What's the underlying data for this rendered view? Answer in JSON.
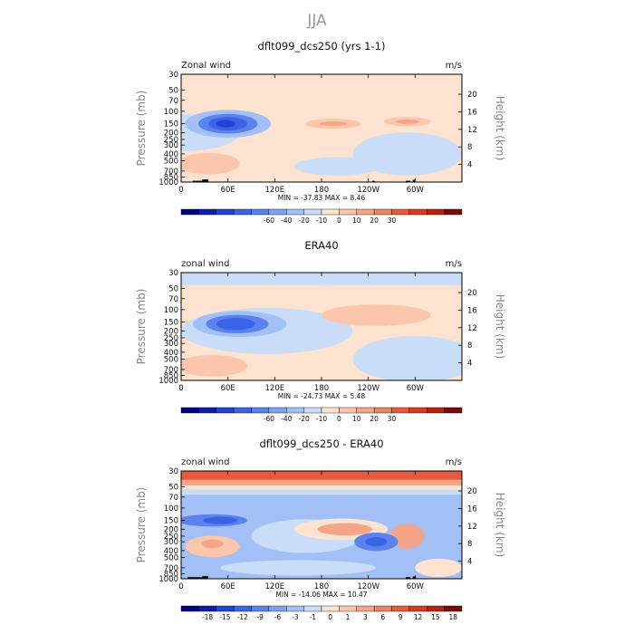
{
  "figure": {
    "title": "JJA"
  },
  "colors": {
    "dark_blue": "#02067a",
    "blue": "#1f43d8",
    "mid_blue": "#4c78e8",
    "light_blue": "#87aaf3",
    "pale_blue": "#c9dcf8",
    "cream": "#fde3d0",
    "salmon": "#f4a588",
    "orange_red": "#e85a3b",
    "dark_red": "#7a0a0a"
  },
  "chart_data": [
    {
      "type": "heatmap",
      "title": "dflt099_dcs250 (yrs 1-1)",
      "left_label": "Zonal wind",
      "right_label": "m/s",
      "ylabel": "Pressure (mb)",
      "y2label": "Height (km)",
      "x_ticks": [
        "0",
        "60E",
        "120E",
        "180",
        "120W",
        "60W"
      ],
      "x_tick_lon": [
        0,
        60,
        120,
        180,
        240,
        300
      ],
      "xlim": [
        0,
        360
      ],
      "y_ticks": [
        "30",
        "50",
        "70",
        "100",
        "150",
        "200",
        "250",
        "300",
        "400",
        "500",
        "700",
        "850",
        "1000"
      ],
      "y_tick_values": [
        30,
        50,
        70,
        100,
        150,
        200,
        250,
        300,
        400,
        500,
        700,
        850,
        1000
      ],
      "ylim": [
        1000,
        30
      ],
      "y_scale": "log",
      "height_ticks": [
        "4",
        "8",
        "12",
        "16",
        "20"
      ],
      "height_tick_km": [
        4,
        8,
        12,
        16,
        20
      ],
      "minmax": "MIN = -37.83   MAX =   8.46",
      "min": -37.83,
      "max": 8.46,
      "colorbar_labels": [
        "-60",
        "-40",
        "-20",
        "-10",
        "0",
        "10",
        "20",
        "30"
      ],
      "colorbar_colors": [
        "#02067a",
        "#0a1fb0",
        "#1f43d8",
        "#3a63e6",
        "#5a83ee",
        "#7da2f2",
        "#a2c0f5",
        "#c9dcf8",
        "#fde3d0",
        "#fbc6ac",
        "#f4a588",
        "#ee8466",
        "#e85a3b",
        "#d93a20",
        "#b82010",
        "#7a0a0a"
      ],
      "background": "#fde3d0",
      "regions": [
        {
          "fill": "#c9dcf8",
          "lon": 5,
          "p": 200,
          "dlon": 70,
          "dp": 0.6
        },
        {
          "fill": "#a2c0f5",
          "lon": 60,
          "p": 150,
          "dlon": 55,
          "dp": 0.45
        },
        {
          "fill": "#5a83ee",
          "lon": 60,
          "p": 150,
          "dlon": 38,
          "dp": 0.32
        },
        {
          "fill": "#3a63e6",
          "lon": 60,
          "p": 150,
          "dlon": 25,
          "dp": 0.22
        },
        {
          "fill": "#1f43d8",
          "lon": 57,
          "p": 150,
          "dlon": 12,
          "dp": 0.12
        },
        {
          "fill": "#c9dcf8",
          "lon": 290,
          "p": 400,
          "dlon": 70,
          "dp": 0.7
        },
        {
          "fill": "#c9dcf8",
          "lon": 200,
          "p": 600,
          "dlon": 55,
          "dp": 0.3
        },
        {
          "fill": "#fde3d0",
          "lon": 230,
          "p": 150,
          "dlon": 35,
          "dp": 0.22
        },
        {
          "fill": "#fbc6ac",
          "lon": 195,
          "p": 150,
          "dlon": 35,
          "dp": 0.17
        },
        {
          "fill": "#f4a588",
          "lon": 195,
          "p": 150,
          "dlon": 18,
          "dp": 0.07
        },
        {
          "fill": "#fbc6ac",
          "lon": 290,
          "p": 140,
          "dlon": 30,
          "dp": 0.15
        },
        {
          "fill": "#f4a588",
          "lon": 290,
          "p": 140,
          "dlon": 15,
          "dp": 0.07
        },
        {
          "fill": "#fbc6ac",
          "lon": 35,
          "p": 550,
          "dlon": 40,
          "dp": 0.35
        }
      ],
      "terrain": [
        {
          "lon": 15,
          "dlon": 12,
          "p_top": 960
        },
        {
          "lon": 27,
          "dlon": 8,
          "p_top": 920
        },
        {
          "lon": 245,
          "dlon": 3,
          "p_top": 960
        },
        {
          "lon": 288,
          "dlon": 6,
          "p_top": 960
        },
        {
          "lon": 297,
          "dlon": 3,
          "p_top": 930
        }
      ]
    },
    {
      "type": "heatmap",
      "title": "ERA40",
      "left_label": "zonal wind",
      "right_label": "m/s",
      "ylabel": "Pressure (mb)",
      "y2label": "Height (km)",
      "x_ticks": [
        "0",
        "60E",
        "120E",
        "180",
        "120W",
        "60W"
      ],
      "x_tick_lon": [
        0,
        60,
        120,
        180,
        240,
        300
      ],
      "xlim": [
        0,
        360
      ],
      "y_ticks": [
        "30",
        "50",
        "70",
        "100",
        "150",
        "200",
        "250",
        "300",
        "400",
        "500",
        "700",
        "850",
        "1000"
      ],
      "y_tick_values": [
        30,
        50,
        70,
        100,
        150,
        200,
        250,
        300,
        400,
        500,
        700,
        850,
        1000
      ],
      "ylim": [
        1000,
        30
      ],
      "y_scale": "log",
      "height_ticks": [
        "4",
        "8",
        "12",
        "16",
        "20"
      ],
      "height_tick_km": [
        4,
        8,
        12,
        16,
        20
      ],
      "minmax": "MIN = -24.73   MAX =   5.48",
      "min": -24.73,
      "max": 5.48,
      "colorbar_labels": [
        "-60",
        "-40",
        "-20",
        "-10",
        "0",
        "10",
        "20",
        "30"
      ],
      "colorbar_colors": [
        "#02067a",
        "#0a1fb0",
        "#1f43d8",
        "#3a63e6",
        "#5a83ee",
        "#7da2f2",
        "#a2c0f5",
        "#c9dcf8",
        "#fde3d0",
        "#fbc6ac",
        "#f4a588",
        "#ee8466",
        "#e85a3b",
        "#d93a20",
        "#b82010",
        "#7a0a0a"
      ],
      "background": "#fde3d0",
      "bands": [
        {
          "fill": "#c9dcf8",
          "p_top": 30,
          "p_bottom": 45
        }
      ],
      "regions": [
        {
          "fill": "#c9dcf8",
          "lon": 110,
          "p": 200,
          "dlon": 110,
          "dp": 0.75
        },
        {
          "fill": "#a2c0f5",
          "lon": 75,
          "p": 160,
          "dlon": 60,
          "dp": 0.42
        },
        {
          "fill": "#5a83ee",
          "lon": 72,
          "p": 160,
          "dlon": 40,
          "dp": 0.3
        },
        {
          "fill": "#3a63e6",
          "lon": 70,
          "p": 160,
          "dlon": 25,
          "dp": 0.2
        },
        {
          "fill": "#c9dcf8",
          "lon": 300,
          "p": 500,
          "dlon": 80,
          "dp": 0.75
        },
        {
          "fill": "#fbc6ac",
          "lon": 250,
          "p": 120,
          "dlon": 70,
          "dp": 0.35
        },
        {
          "fill": "#fbc6ac",
          "lon": 40,
          "p": 620,
          "dlon": 45,
          "dp": 0.35
        }
      ],
      "terrain": []
    },
    {
      "type": "heatmap",
      "title": "dflt099_dcs250 - ERA40",
      "left_label": "zonal wind",
      "right_label": "m/s",
      "ylabel": "Pressure (mb)",
      "y2label": "Height (km)",
      "x_ticks": [
        "0",
        "60E",
        "120E",
        "180",
        "120W",
        "60W"
      ],
      "x_tick_lon": [
        0,
        60,
        120,
        180,
        240,
        300
      ],
      "xlim": [
        0,
        360
      ],
      "y_ticks": [
        "30",
        "50",
        "70",
        "100",
        "150",
        "200",
        "250",
        "300",
        "400",
        "500",
        "700",
        "850",
        "1000"
      ],
      "y_tick_values": [
        30,
        50,
        70,
        100,
        150,
        200,
        250,
        300,
        400,
        500,
        700,
        850,
        1000
      ],
      "ylim": [
        1000,
        30
      ],
      "y_scale": "log",
      "height_ticks": [
        "4",
        "8",
        "12",
        "16",
        "20"
      ],
      "height_tick_km": [
        4,
        8,
        12,
        16,
        20
      ],
      "minmax": "MIN = -14.06   MAX =  10.47",
      "min": -14.06,
      "max": 10.47,
      "colorbar_labels": [
        "-18",
        "-15",
        "-12",
        "-9",
        "-6",
        "-3",
        "-1",
        "0",
        "1",
        "3",
        "6",
        "9",
        "12",
        "15",
        "18"
      ],
      "colorbar_colors": [
        "#02067a",
        "#0a1fb0",
        "#1f43d8",
        "#3a63e6",
        "#5a83ee",
        "#7da2f2",
        "#a2c0f5",
        "#c9dcf8",
        "#fde3d0",
        "#fbc6ac",
        "#f4a588",
        "#ee8466",
        "#e85a3b",
        "#d93a20",
        "#b82010",
        "#7a0a0a"
      ],
      "background": "#a2c0f5",
      "bands": [
        {
          "fill": "#e85a3b",
          "p_top": 30,
          "p_bottom": 40
        },
        {
          "fill": "#f4a588",
          "p_top": 40,
          "p_bottom": 48
        },
        {
          "fill": "#fde3d0",
          "p_top": 48,
          "p_bottom": 55
        },
        {
          "fill": "#c9dcf8",
          "p_top": 55,
          "p_bottom": 65
        }
      ],
      "regions": [
        {
          "fill": "#5a83ee",
          "lon": 40,
          "p": 150,
          "dlon": 45,
          "dp": 0.2
        },
        {
          "fill": "#3a63e6",
          "lon": 50,
          "p": 150,
          "dlon": 22,
          "dp": 0.12
        },
        {
          "fill": "#c9dcf8",
          "lon": 160,
          "p": 250,
          "dlon": 70,
          "dp": 0.55
        },
        {
          "fill": "#fde3d0",
          "lon": 205,
          "p": 200,
          "dlon": 60,
          "dp": 0.35
        },
        {
          "fill": "#f4a588",
          "lon": 210,
          "p": 200,
          "dlon": 35,
          "dp": 0.2
        },
        {
          "fill": "#f4a588",
          "lon": 290,
          "p": 250,
          "dlon": 22,
          "dp": 0.4
        },
        {
          "fill": "#5a83ee",
          "lon": 250,
          "p": 300,
          "dlon": 28,
          "dp": 0.3
        },
        {
          "fill": "#3a63e6",
          "lon": 250,
          "p": 300,
          "dlon": 14,
          "dp": 0.15
        },
        {
          "fill": "#fbc6ac",
          "lon": 40,
          "p": 350,
          "dlon": 35,
          "dp": 0.35
        },
        {
          "fill": "#f4a588",
          "lon": 40,
          "p": 320,
          "dlon": 14,
          "dp": 0.14
        },
        {
          "fill": "#c9dcf8",
          "lon": 150,
          "p": 700,
          "dlon": 100,
          "dp": 0.25
        },
        {
          "fill": "#fde3d0",
          "lon": 330,
          "p": 700,
          "dlon": 30,
          "dp": 0.3
        }
      ],
      "terrain": [
        {
          "lon": 8,
          "dlon": 22,
          "p_top": 950
        },
        {
          "lon": 27,
          "dlon": 8,
          "p_top": 920
        },
        {
          "lon": 288,
          "dlon": 6,
          "p_top": 950
        },
        {
          "lon": 297,
          "dlon": 4,
          "p_top": 930
        }
      ]
    }
  ]
}
